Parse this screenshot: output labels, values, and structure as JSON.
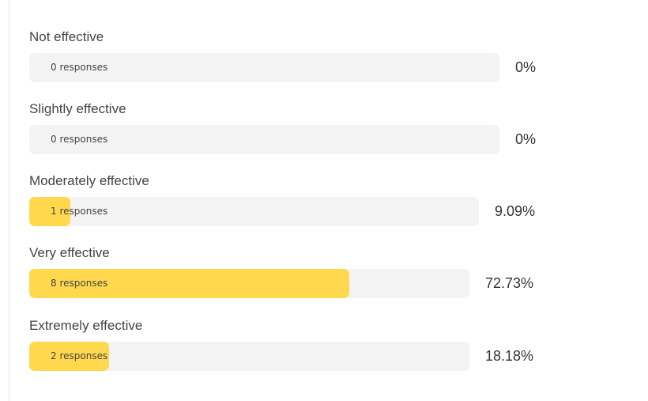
{
  "colors": {
    "fill": "#ffd84e",
    "track": "#f3f3f3"
  },
  "chart_data": {
    "type": "bar",
    "categories": [
      "Not effective",
      "Slightly effective",
      "Moderately effective",
      "Very effective",
      "Extremely effective"
    ],
    "values": [
      0,
      0,
      1,
      8,
      2
    ]
  },
  "results": [
    {
      "label": "Not effective",
      "responses_text": "0 responses",
      "percent_text": "0%",
      "percent": 0
    },
    {
      "label": "Slightly effective",
      "responses_text": "0 responses",
      "percent_text": "0%",
      "percent": 0
    },
    {
      "label": "Moderately effective",
      "responses_text": "1 responses",
      "percent_text": "9.09%",
      "percent": 9.09
    },
    {
      "label": "Very effective",
      "responses_text": "8 responses",
      "percent_text": "72.73%",
      "percent": 72.73
    },
    {
      "label": "Extremely effective",
      "responses_text": "2 responses",
      "percent_text": "18.18%",
      "percent": 18.18
    }
  ]
}
